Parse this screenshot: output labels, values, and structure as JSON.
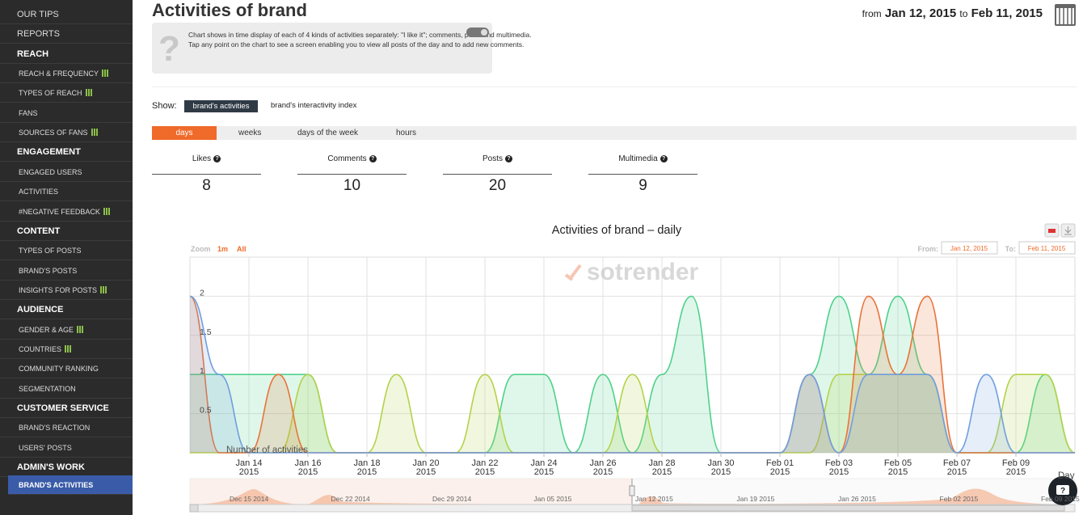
{
  "sidebar": {
    "top": [
      "OUR TIPS",
      "REPORTS"
    ],
    "sections": [
      {
        "title": "REACH",
        "items": [
          "REACH & FREQUENCY",
          "TYPES OF REACH",
          "FANS",
          "SOURCES OF FANS"
        ]
      },
      {
        "title": "ENGAGEMENT",
        "items": [
          "ENGAGED USERS",
          "ACTIVITIES",
          "#NEGATIVE FEEDBACK"
        ]
      },
      {
        "title": "CONTENT",
        "items": [
          "TYPES OF POSTS",
          "BRAND'S POSTS",
          "INSIGHTS FOR POSTS"
        ]
      },
      {
        "title": "AUDIENCE",
        "items": [
          "GENDER & AGE",
          "COUNTRIES",
          "COMMUNITY RANKING",
          "SEGMENTATION"
        ]
      },
      {
        "title": "CUSTOMER SERVICE",
        "items": [
          "BRAND'S REACTION",
          "USERS' POSTS"
        ]
      },
      {
        "title": "ADMIN'S WORK",
        "items": [
          "BRAND'S ACTIVITIES"
        ]
      }
    ]
  },
  "header": {
    "title": "Activities of brand",
    "from_label": "from",
    "from": "Jan 12, 2015",
    "to_label": "to",
    "to": "Feb 11, 2015"
  },
  "info": {
    "paragraphs": [
      "Chart shows in time display of each of 4 kinds of activities separately: \"I like it\"; comments, posts and multimedia.",
      "Tap any point on the chart to see a screen enabling you to view all posts of the day and to add new comments."
    ]
  },
  "show": {
    "label": "Show:",
    "options": [
      "brand's activities",
      "brand's interactivity index"
    ]
  },
  "tabs": [
    "days",
    "weeks",
    "days of the week",
    "hours"
  ],
  "stats": [
    {
      "label": "Likes",
      "value": 8
    },
    {
      "label": "Comments",
      "value": 10
    },
    {
      "label": "Posts",
      "value": 20
    },
    {
      "label": "Multimedia",
      "value": 9
    }
  ],
  "chart_data": {
    "type": "area",
    "title": "Activities of brand – daily",
    "zoom": {
      "label": "Zoom",
      "options": [
        "1m",
        "All"
      ]
    },
    "range": {
      "from_label": "From:",
      "from": "Jan 12, 2015",
      "to_label": "To:",
      "to": "Feb 11, 2015"
    },
    "watermark": "sotrender",
    "y_label": "Number of activities",
    "x_label": "Day",
    "x": [
      "2015-01-12",
      "2015-01-13",
      "2015-01-14",
      "2015-01-15",
      "2015-01-16",
      "2015-01-17",
      "2015-01-18",
      "2015-01-19",
      "2015-01-20",
      "2015-01-21",
      "2015-01-22",
      "2015-01-23",
      "2015-01-24",
      "2015-01-25",
      "2015-01-26",
      "2015-01-27",
      "2015-01-28",
      "2015-01-29",
      "2015-01-30",
      "2015-01-31",
      "2015-02-01",
      "2015-02-02",
      "2015-02-03",
      "2015-02-04",
      "2015-02-05",
      "2015-02-06",
      "2015-02-07",
      "2015-02-08",
      "2015-02-09",
      "2015-02-10",
      "2015-02-11"
    ],
    "xlim": [
      "2015-01-12",
      "2015-02-11"
    ],
    "xticks": [
      {
        "value": "2015-01-14",
        "label": [
          "Jan 14",
          "2015"
        ]
      },
      {
        "value": "2015-01-16",
        "label": [
          "Jan 16",
          "2015"
        ]
      },
      {
        "value": "2015-01-18",
        "label": [
          "Jan 18",
          "2015"
        ]
      },
      {
        "value": "2015-01-20",
        "label": [
          "Jan 20",
          "2015"
        ]
      },
      {
        "value": "2015-01-22",
        "label": [
          "Jan 22",
          "2015"
        ]
      },
      {
        "value": "2015-01-24",
        "label": [
          "Jan 24",
          "2015"
        ]
      },
      {
        "value": "2015-01-26",
        "label": [
          "Jan 26",
          "2015"
        ]
      },
      {
        "value": "2015-01-28",
        "label": [
          "Jan 28",
          "2015"
        ]
      },
      {
        "value": "2015-01-30",
        "label": [
          "Jan 30",
          "2015"
        ]
      },
      {
        "value": "2015-02-01",
        "label": [
          "Feb 01",
          "2015"
        ]
      },
      {
        "value": "2015-02-03",
        "label": [
          "Feb 03",
          "2015"
        ]
      },
      {
        "value": "2015-02-05",
        "label": [
          "Feb 05",
          "2015"
        ]
      },
      {
        "value": "2015-02-07",
        "label": [
          "Feb 07",
          "2015"
        ]
      },
      {
        "value": "2015-02-09",
        "label": [
          "Feb 09",
          "2015"
        ]
      }
    ],
    "ylim": [
      0,
      2.5
    ],
    "yticks": [
      0.5,
      1,
      1.5,
      2
    ],
    "grid": true,
    "series": [
      {
        "color": "#4fd18b",
        "values": [
          1,
          1,
          1,
          1,
          1,
          0,
          0,
          0,
          0,
          0,
          0,
          1,
          1,
          0,
          1,
          0,
          1,
          2,
          0,
          0,
          0,
          1,
          2,
          1,
          2,
          1,
          0,
          0,
          0,
          1,
          0
        ]
      },
      {
        "color": "#b3d24a",
        "values": [
          0,
          0,
          0,
          0,
          1,
          0,
          0,
          1,
          0,
          0,
          1,
          0,
          0,
          0,
          0,
          1,
          0,
          0,
          0,
          0,
          0,
          0,
          1,
          1,
          1,
          1,
          0,
          0,
          1,
          1,
          0
        ]
      },
      {
        "color": "#e8733a",
        "values": [
          2,
          0,
          0,
          1,
          0,
          0,
          0,
          0,
          0,
          0,
          0,
          0,
          0,
          0,
          0,
          0,
          0,
          0,
          0,
          0,
          0,
          1,
          0,
          2,
          1,
          2,
          0,
          0,
          0,
          0,
          0
        ]
      },
      {
        "color": "#6f9ee0",
        "values": [
          2,
          1,
          0,
          0,
          0,
          0,
          0,
          0,
          0,
          0,
          0,
          0,
          0,
          0,
          0,
          0,
          0,
          0,
          0,
          0,
          0,
          1,
          0,
          1,
          1,
          1,
          0,
          1,
          0,
          0,
          0
        ]
      }
    ],
    "navigator_labels": [
      "Dec 15 2014",
      "Dec 22 2014",
      "Dec 29 2014",
      "Jan 05 2015",
      "Jan 12 2015",
      "Jan 19 2015",
      "Jan 26 2015",
      "Feb 02 2015",
      "Feb 09 2015"
    ]
  }
}
